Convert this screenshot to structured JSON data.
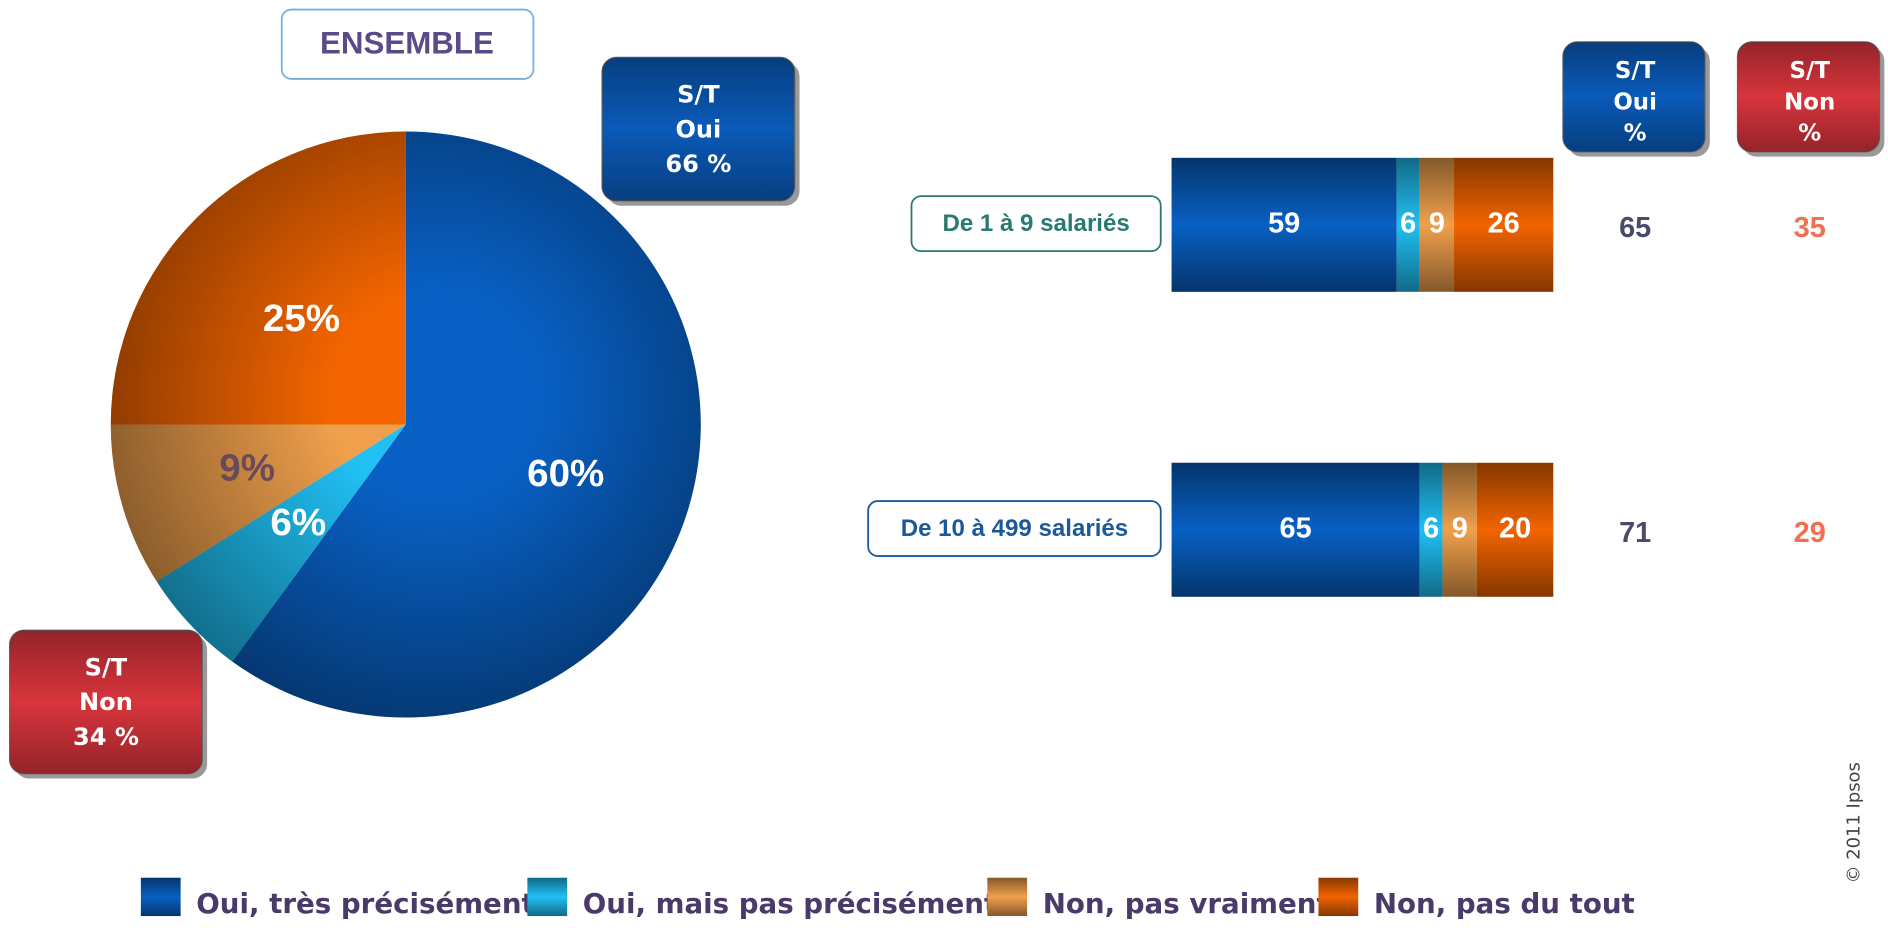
{
  "chart_data": [
    {
      "type": "pie",
      "title": "ENSEMBLE",
      "values": [
        60,
        6,
        9,
        25
      ],
      "value_labels": [
        "60%",
        "6%",
        "9%",
        "25%"
      ],
      "colors": [
        "#0860c4",
        "#20c0f4",
        "#f0a04c",
        "#f26400"
      ],
      "label_colors": [
        "#ffffff",
        "#ffffff",
        "#6a4a5a",
        "#ffffff"
      ],
      "summaries": [
        {
          "label": [
            "S/T",
            "Oui"
          ],
          "value": 66,
          "value_label": "66 %",
          "color": "#0a5ab8"
        },
        {
          "label": [
            "S/T",
            "Non"
          ],
          "value": 34,
          "value_label": "34 %",
          "color": "#d8343c"
        }
      ]
    },
    {
      "type": "bar",
      "orientation": "horizontal",
      "stacked": true,
      "categories": [
        "De 1 à 9 salariés",
        "De 10 à 499 salariés"
      ],
      "category_colors": [
        "#2a7a70",
        "#1a5a9a"
      ],
      "xlim": [
        0,
        100
      ],
      "series": [
        {
          "name": "Oui, très précisément",
          "color": "#0860c4",
          "values": [
            59,
            65
          ]
        },
        {
          "name": "Oui, mais pas précisément",
          "color": "#20c0f4",
          "values": [
            6,
            6
          ]
        },
        {
          "name": "Non, pas vraiment",
          "color": "#f0a04c",
          "values": [
            9,
            9
          ]
        },
        {
          "name": "Non, pas du tout",
          "color": "#f26400",
          "values": [
            26,
            20
          ]
        }
      ],
      "columns": [
        {
          "header": [
            "S/T",
            "Oui",
            "%"
          ],
          "values": [
            65,
            71
          ],
          "color": "#0a5ab8",
          "text_color": "#4a4a6a"
        },
        {
          "header": [
            "S/T",
            "Non",
            "%"
          ],
          "values": [
            35,
            29
          ],
          "color": "#d8343c",
          "text_color": "#f07050"
        }
      ]
    }
  ],
  "footer": "© 2011 Ipsos"
}
